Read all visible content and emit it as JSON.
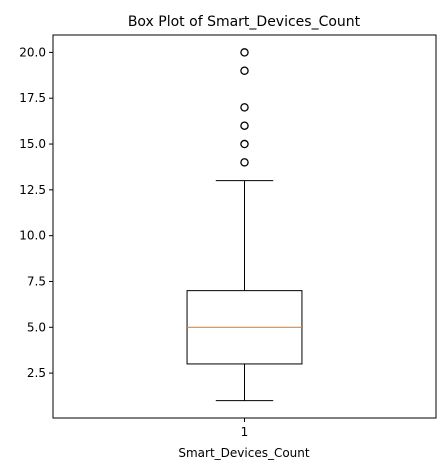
{
  "chart_data": {
    "type": "box",
    "title": "Box Plot of Smart_Devices_Count",
    "xlabel": "Smart_Devices_Count",
    "ylabel": "",
    "categories": [
      "1"
    ],
    "ylim": [
      0.05,
      20.95
    ],
    "yticks": [
      2.5,
      5.0,
      7.5,
      10.0,
      12.5,
      15.0,
      17.5,
      20.0
    ],
    "ytick_labels": [
      "2.5",
      "5.0",
      "7.5",
      "10.0",
      "12.5",
      "15.0",
      "17.5",
      "20.0"
    ],
    "grid": false,
    "boxes": [
      {
        "name": "Smart_Devices_Count",
        "whisker_low": 1,
        "q1": 3,
        "median": 5,
        "q3": 7,
        "whisker_high": 13,
        "outliers": [
          14,
          15,
          16,
          17,
          19,
          20
        ]
      }
    ],
    "colors": {
      "box": "#000000",
      "median": "#ff7f0e",
      "outlier": "#000000"
    }
  }
}
